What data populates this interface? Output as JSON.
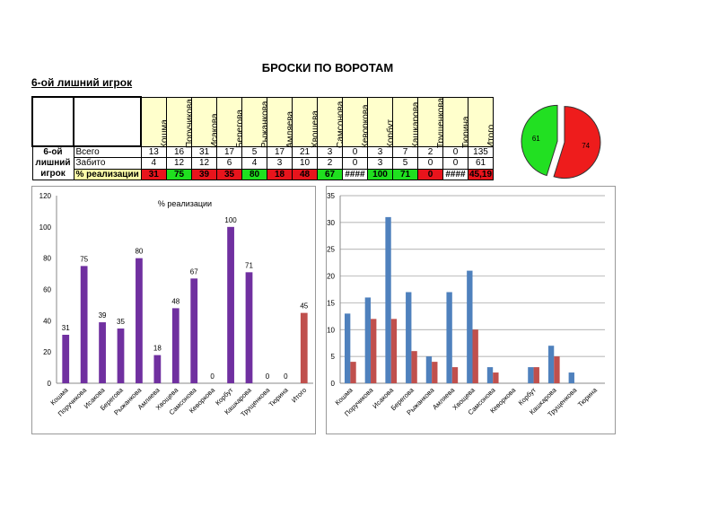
{
  "title": "БРОСКИ ПО ВОРОТАМ",
  "subtitle": "6-ой лишний игрок",
  "table": {
    "group_label": "6-ой лишний игрок",
    "players": [
      "Кошма",
      "Поручикова",
      "Исакова",
      "Берегова",
      "Рыжанкова",
      "Амляева",
      "Хвощева",
      "Самсонова",
      "Кеворкова",
      "Корбут",
      "Кашкарова",
      "Трущенкова",
      "Тюрина",
      "Итого"
    ],
    "rows": [
      {
        "label": "Всего",
        "values": [
          "13",
          "16",
          "31",
          "17",
          "5",
          "17",
          "21",
          "3",
          "0",
          "3",
          "7",
          "2",
          "0",
          "135"
        ]
      },
      {
        "label": "Забито",
        "values": [
          "4",
          "12",
          "12",
          "6",
          "4",
          "3",
          "10",
          "2",
          "0",
          "3",
          "5",
          "0",
          "0",
          "61"
        ]
      },
      {
        "label": "% реализации",
        "values": [
          "31",
          "75",
          "39",
          "35",
          "80",
          "18",
          "48",
          "67",
          "####",
          "100",
          "71",
          "0",
          "####",
          "45,19"
        ],
        "colors": [
          "red",
          "green",
          "red",
          "red",
          "green",
          "red",
          "red",
          "green",
          "white",
          "green",
          "green",
          "red",
          "white",
          "red"
        ]
      }
    ]
  },
  "colors": {
    "red": "#e8141c",
    "green": "#1fe01f",
    "white": "#ffffff",
    "label_yellow": "#ffffaa",
    "header_yellow": "#ffffcc",
    "purple": "#7030a0",
    "blue": "#4f81bd",
    "bar_red": "#c0504d"
  },
  "chart_data": [
    {
      "type": "pie",
      "values": [
        61,
        74
      ],
      "labels": [
        "61",
        "74"
      ],
      "colors": [
        "#22e022",
        "#ee1c1c"
      ]
    },
    {
      "type": "bar",
      "title": "% реализации",
      "categories": [
        "Кошма",
        "Поручикова",
        "Исакова",
        "Берегова",
        "Рыжанкова",
        "Амляева",
        "Хвощева",
        "Самсонова",
        "Кеворкова",
        "Корбут",
        "Кашкарова",
        "Трущенкова",
        "Тюрина",
        "Итого"
      ],
      "values": [
        31,
        75,
        39,
        35,
        80,
        18,
        48,
        67,
        0,
        100,
        71,
        0,
        0,
        45
      ],
      "data_labels": [
        "31",
        "75",
        "39",
        "35",
        "80",
        "18",
        "48",
        "67",
        "0",
        "100",
        "71",
        "0",
        "0",
        "45"
      ],
      "ylim": [
        0,
        120
      ],
      "yticks": [
        "0",
        "20",
        "40",
        "60",
        "80",
        "100",
        "120"
      ],
      "grid": false
    },
    {
      "type": "bar",
      "categories": [
        "Кошма",
        "Поручикова",
        "Исакова",
        "Берегова",
        "Рыжанкова",
        "Амляева",
        "Хвощева",
        "Самсонова",
        "Кеворкова",
        "Корбут",
        "Кашкарова",
        "Трущенкова",
        "Тюрина"
      ],
      "series": [
        {
          "values": [
            13,
            16,
            31,
            17,
            5,
            17,
            21,
            3,
            0,
            3,
            7,
            2,
            0
          ],
          "color": "#4f81bd"
        },
        {
          "values": [
            4,
            12,
            12,
            6,
            4,
            3,
            10,
            2,
            0,
            3,
            5,
            0,
            0
          ],
          "color": "#c0504d"
        }
      ],
      "ylim": [
        0,
        35
      ],
      "yticks": [
        "0",
        "5",
        "10",
        "15",
        "20",
        "25",
        "30",
        "35"
      ],
      "grid": true
    }
  ]
}
